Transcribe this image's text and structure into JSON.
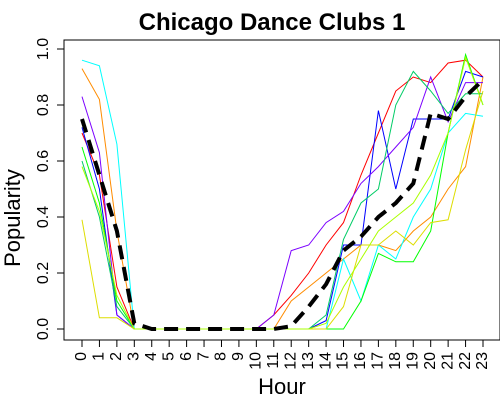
{
  "chart_data": {
    "type": "line",
    "title": "Chicago Dance Clubs 1",
    "xlabel": "Hour",
    "ylabel": "Popularity",
    "x": [
      0,
      1,
      2,
      3,
      4,
      5,
      6,
      7,
      8,
      9,
      10,
      11,
      12,
      13,
      14,
      15,
      16,
      17,
      18,
      19,
      20,
      21,
      22,
      23
    ],
    "x_tick_labels": [
      "0",
      "1",
      "2",
      "3",
      "4",
      "5",
      "6",
      "7",
      "8",
      "9",
      "10",
      "11",
      "12",
      "13",
      "14",
      "15",
      "16",
      "17",
      "18",
      "19",
      "20",
      "21",
      "22",
      "23"
    ],
    "xlim": [
      0,
      23
    ],
    "ylim": [
      0,
      1
    ],
    "y_ticks": [
      0.0,
      0.2,
      0.4,
      0.6,
      0.8,
      1.0
    ],
    "y_tick_labels": [
      "0.0",
      "0.2",
      "0.4",
      "0.6",
      "0.8",
      "1.0"
    ],
    "grid": false,
    "legend": "none",
    "series": [
      {
        "color": "#ff0000",
        "values": [
          0.7,
          0.55,
          0.15,
          0,
          0,
          0,
          0,
          0,
          0,
          0,
          0,
          0.05,
          0.12,
          0.2,
          0.3,
          0.38,
          0.55,
          0.7,
          0.85,
          0.9,
          0.88,
          0.95,
          0.96,
          0.9
        ]
      },
      {
        "color": "#ff8c00",
        "values": [
          0.93,
          0.82,
          0.35,
          0,
          0,
          0,
          0,
          0,
          0,
          0,
          0,
          0,
          0.1,
          0.15,
          0.2,
          0.25,
          0.3,
          0.3,
          0.28,
          0.35,
          0.4,
          0.5,
          0.58,
          0.9
        ]
      },
      {
        "color": "#00ffff",
        "values": [
          0.96,
          0.94,
          0.66,
          0,
          0,
          0,
          0,
          0,
          0,
          0,
          0,
          0,
          0,
          0,
          0,
          0.25,
          0.1,
          0.3,
          0.25,
          0.4,
          0.5,
          0.7,
          0.77,
          0.76
        ]
      },
      {
        "color": "#0000ff",
        "values": [
          0.72,
          0.5,
          0.05,
          0,
          0,
          0,
          0,
          0,
          0,
          0,
          0,
          0,
          0,
          0,
          0.03,
          0.3,
          0.3,
          0.78,
          0.5,
          0.75,
          0.75,
          0.75,
          0.92,
          0.9
        ]
      },
      {
        "color": "#7b00ff",
        "values": [
          0.83,
          0.63,
          0.05,
          0,
          0,
          0,
          0,
          0,
          0,
          0,
          0,
          0.05,
          0.28,
          0.3,
          0.38,
          0.42,
          0.52,
          0.58,
          0.65,
          0.72,
          0.9,
          0.74,
          0.88,
          0.88
        ]
      },
      {
        "color": "#00ff00",
        "values": [
          0.65,
          0.45,
          0.1,
          0,
          0,
          0,
          0,
          0,
          0,
          0,
          0,
          0,
          0,
          0,
          0,
          0,
          0.1,
          0.27,
          0.24,
          0.24,
          0.35,
          0.7,
          0.98,
          0.8
        ]
      },
      {
        "color": "#00cc66",
        "values": [
          0.6,
          0.4,
          0.08,
          0,
          0,
          0,
          0,
          0,
          0,
          0,
          0,
          0,
          0,
          0,
          0.05,
          0.32,
          0.45,
          0.5,
          0.8,
          0.92,
          0.85,
          0.77,
          0.84,
          0.84
        ]
      },
      {
        "color": "#dddd00",
        "values": [
          0.39,
          0.04,
          0.04,
          0,
          0,
          0,
          0,
          0,
          0,
          0,
          0,
          0,
          0,
          0,
          0,
          0.08,
          0.3,
          0.3,
          0.35,
          0.3,
          0.38,
          0.39,
          0.64,
          0.85
        ]
      },
      {
        "color": "#aaff00",
        "values": [
          0.58,
          0.42,
          0.12,
          0,
          0,
          0,
          0,
          0,
          0,
          0,
          0,
          0,
          0,
          0,
          0.02,
          0.15,
          0.25,
          0.35,
          0.4,
          0.45,
          0.55,
          0.7,
          0.97,
          0.8
        ]
      }
    ],
    "mean_series": {
      "color": "#000000",
      "style": "dashed",
      "values": [
        0.75,
        0.55,
        0.35,
        0.02,
        0,
        0,
        0,
        0,
        0,
        0,
        0,
        0,
        0.01,
        0.08,
        0.16,
        0.28,
        0.33,
        0.4,
        0.45,
        0.52,
        0.77,
        0.75,
        0.83,
        0.89
      ]
    }
  }
}
